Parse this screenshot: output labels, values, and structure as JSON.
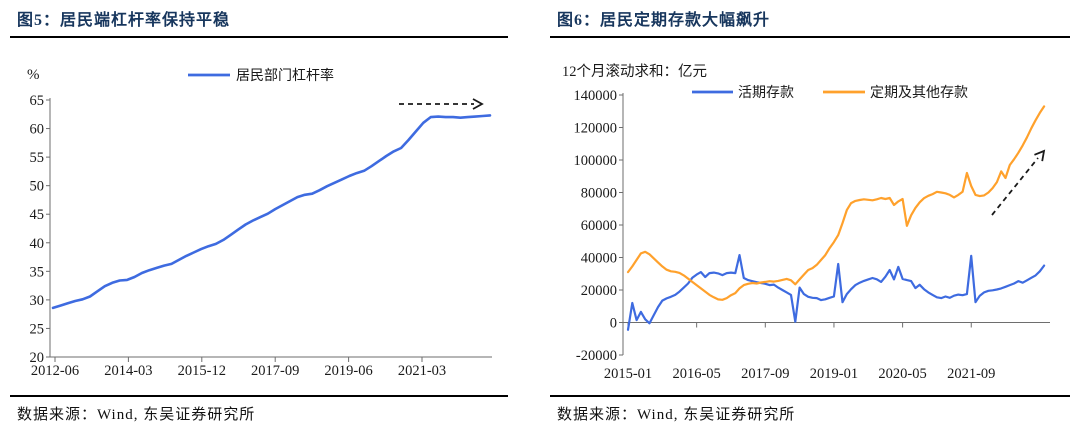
{
  "page": {
    "background": "#ffffff",
    "accent_title_color": "#17365d"
  },
  "figures": [
    {
      "title": "图5：居民端杠杆率保持平稳",
      "source": "数据来源：Wind, 东吴证券研究所",
      "axis_unit": "%",
      "chart_data": {
        "type": "line",
        "title": "居民端杠杆率保持平稳",
        "ylabel": "%",
        "ylim": [
          20,
          65
        ],
        "ytick_step": 5,
        "xticklabels": [
          "2012-06",
          "2014-03",
          "2015-12",
          "2017-09",
          "2019-06",
          "2021-03"
        ],
        "x_range": "2012-06 to 2022-09, evenly spaced samples",
        "grid": false,
        "legend_position": "top-center",
        "annotation": "horizontal dashed arrow pointing right above the flat end of the line",
        "series": [
          {
            "name": "居民部门杠杆率",
            "color": "#3E6BE0",
            "values": [
              28.6,
              29.0,
              29.4,
              29.8,
              30.1,
              30.6,
              31.5,
              32.4,
              33.0,
              33.4,
              33.5,
              34.0,
              34.7,
              35.2,
              35.6,
              36.0,
              36.3,
              37.0,
              37.7,
              38.3,
              38.9,
              39.4,
              39.8,
              40.5,
              41.4,
              42.3,
              43.2,
              43.9,
              44.5,
              45.1,
              45.9,
              46.6,
              47.3,
              48.0,
              48.4,
              48.6,
              49.2,
              49.9,
              50.5,
              51.1,
              51.7,
              52.2,
              52.6,
              53.4,
              54.3,
              55.2,
              56.0,
              56.6,
              58.0,
              59.5,
              61.0,
              62.0,
              62.1,
              62.0,
              62.0,
              61.9,
              62.0,
              62.1,
              62.2,
              62.3
            ]
          }
        ]
      }
    },
    {
      "title": "图6：居民定期存款大幅飙升",
      "source": "数据来源：Wind, 东吴证券研究所",
      "axis_unit": "12个月滚动求和：亿元",
      "chart_data": {
        "type": "line",
        "title": "居民定期存款大幅飙升",
        "ylabel": "亿元",
        "ylim": [
          -20000,
          140000
        ],
        "ytick_step": 20000,
        "xticklabels": [
          "2015-01",
          "2016-05",
          "2017-09",
          "2019-01",
          "2020-05",
          "2021-09"
        ],
        "x_range": "monthly, 2015-01 to 2023-02",
        "grid": false,
        "legend_position": "top-center",
        "annotation": "diagonal dashed arrow pointing up-right beside the soaring orange line",
        "series": [
          {
            "name": "活期存款",
            "color": "#3E6BE0",
            "values": [
              -4500,
              12000,
              1500,
              6500,
              2000,
              -500,
              4500,
              9500,
              13500,
              14800,
              15800,
              17000,
              19000,
              21500,
              24000,
              27500,
              29500,
              31000,
              28000,
              30400,
              30700,
              30200,
              29200,
              30400,
              30700,
              30400,
              41500,
              27400,
              26100,
              25400,
              24800,
              24300,
              23800,
              23000,
              23300,
              21500,
              20000,
              18500,
              17000,
              500,
              21500,
              17500,
              15800,
              15200,
              15000,
              13800,
              14300,
              15200,
              16000,
              36000,
              12500,
              17500,
              20500,
              23000,
              24500,
              25600,
              26500,
              27400,
              26600,
              25000,
              28200,
              32300,
              26500,
              34200,
              26800,
              26100,
              25500,
              21200,
              23200,
              20500,
              18500,
              17000,
              15500,
              15000,
              16000,
              15200,
              16500,
              17200,
              16800,
              17500,
              41000,
              12500,
              16500,
              18500,
              19500,
              19800,
              20300,
              21000,
              22000,
              23000,
              24000,
              25500,
              24500,
              26000,
              27500,
              29000,
              31500,
              35000
            ]
          },
          {
            "name": "定期及其他存款",
            "color": "#FFA12C",
            "values": [
              31000,
              34500,
              38500,
              42500,
              43500,
              42000,
              39500,
              37000,
              34500,
              32500,
              31500,
              31200,
              30500,
              29000,
              27000,
              25000,
              23000,
              21000,
              19000,
              17000,
              15500,
              14200,
              14000,
              15000,
              16800,
              18100,
              21000,
              23000,
              23800,
              24300,
              24000,
              24600,
              25000,
              25400,
              25200,
              25600,
              26200,
              26800,
              26000,
              23500,
              26500,
              29500,
              32300,
              33500,
              35500,
              38500,
              41500,
              45800,
              49500,
              53800,
              61200,
              69200,
              73500,
              74800,
              75400,
              75800,
              75500,
              75200,
              75800,
              76600,
              76000,
              76600,
              72300,
              74500,
              76000,
              59500,
              66000,
              70500,
              74000,
              76500,
              78000,
              79000,
              80400,
              80000,
              79500,
              78500,
              77000,
              78500,
              80500,
              92000,
              84000,
              78500,
              77800,
              78200,
              80000,
              82700,
              86400,
              93000,
              88900,
              96900,
              100500,
              104500,
              109000,
              114000,
              119500,
              124500,
              129000,
              133000
            ]
          }
        ]
      }
    }
  ]
}
